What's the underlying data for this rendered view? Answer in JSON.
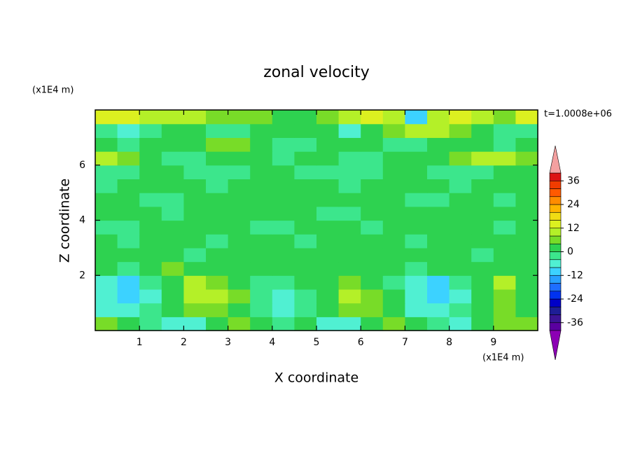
{
  "chart_data": {
    "type": "contour",
    "title": "zonal velocity",
    "x_label": "X coordinate",
    "y_label": "Z coordinate",
    "x_unit": "(x1E4 m)",
    "y_unit": "(x1E4 m)",
    "annotation": "t=1.0008e+06",
    "xlim": [
      0,
      10
    ],
    "ylim": [
      0,
      8
    ],
    "xticks": [
      1,
      2,
      3,
      4,
      5,
      6,
      7,
      8,
      9
    ],
    "yticks": [
      2,
      4,
      6
    ],
    "z": [
      [
        6,
        2,
        -2,
        -6,
        -6,
        2,
        6,
        2,
        -2,
        2,
        -6,
        -6,
        2,
        6,
        2,
        -2,
        -6,
        2,
        6,
        6
      ],
      [
        -6,
        -6,
        -2,
        2,
        6,
        6,
        2,
        -2,
        -6,
        -2,
        2,
        6,
        6,
        2,
        -6,
        -6,
        -2,
        2,
        6,
        2
      ],
      [
        -6,
        -10,
        -6,
        2,
        10,
        10,
        6,
        -2,
        -6,
        -2,
        2,
        10,
        6,
        2,
        -6,
        -10,
        -6,
        2,
        6,
        2
      ],
      [
        -6,
        -10,
        -2,
        2,
        10,
        6,
        2,
        -2,
        -2,
        2,
        2,
        6,
        2,
        -2,
        -6,
        -10,
        -2,
        2,
        10,
        2
      ],
      [
        2,
        -2,
        2,
        6,
        2,
        2,
        2,
        2,
        2,
        2,
        2,
        2,
        2,
        2,
        -2,
        2,
        2,
        2,
        2,
        2
      ],
      [
        2,
        2,
        2,
        2,
        -2,
        2,
        2,
        2,
        2,
        2,
        2,
        2,
        2,
        2,
        2,
        2,
        2,
        -2,
        2,
        2
      ],
      [
        2,
        -2,
        2,
        2,
        2,
        -2,
        2,
        2,
        2,
        -2,
        2,
        2,
        2,
        2,
        -2,
        2,
        2,
        2,
        2,
        2
      ],
      [
        -2,
        -2,
        2,
        2,
        2,
        2,
        2,
        -2,
        -2,
        2,
        2,
        2,
        -2,
        2,
        2,
        2,
        2,
        2,
        -2,
        2
      ],
      [
        2,
        2,
        2,
        -2,
        2,
        2,
        2,
        2,
        2,
        2,
        -2,
        -2,
        2,
        2,
        2,
        2,
        2,
        2,
        2,
        2
      ],
      [
        2,
        2,
        -2,
        -2,
        2,
        2,
        2,
        2,
        2,
        2,
        2,
        2,
        2,
        2,
        -2,
        -2,
        2,
        2,
        -2,
        2
      ],
      [
        -2,
        2,
        2,
        2,
        2,
        -2,
        2,
        2,
        2,
        2,
        2,
        -2,
        2,
        2,
        2,
        2,
        -2,
        2,
        2,
        2
      ],
      [
        -2,
        -2,
        2,
        2,
        -2,
        -2,
        -2,
        2,
        2,
        -2,
        -2,
        -2,
        -2,
        2,
        2,
        -2,
        -2,
        -2,
        2,
        2
      ],
      [
        10,
        6,
        2,
        -2,
        -2,
        2,
        2,
        2,
        -2,
        2,
        2,
        -2,
        -2,
        2,
        2,
        2,
        6,
        10,
        10,
        6
      ],
      [
        2,
        -2,
        2,
        2,
        2,
        6,
        6,
        2,
        -2,
        -2,
        2,
        2,
        2,
        -2,
        -2,
        2,
        2,
        2,
        -2,
        2
      ],
      [
        -2,
        -6,
        -2,
        2,
        2,
        -2,
        -2,
        2,
        2,
        2,
        2,
        -6,
        2,
        6,
        10,
        10,
        6,
        2,
        -2,
        -2
      ],
      [
        14,
        14,
        10,
        10,
        10,
        6,
        6,
        6,
        2,
        2,
        6,
        10,
        14,
        10,
        -10,
        10,
        14,
        10,
        6,
        14
      ]
    ],
    "colorbar": {
      "levels": [
        -40,
        -36,
        -32,
        -28,
        -24,
        -20,
        -16,
        -12,
        -8,
        -4,
        0,
        4,
        8,
        12,
        16,
        20,
        24,
        28,
        32,
        36,
        40
      ],
      "colors": [
        "#8c00b4",
        "#5a00a0",
        "#3c1496",
        "#1e1e96",
        "#0000c8",
        "#0032f0",
        "#1e6eff",
        "#28a0ff",
        "#3cd2ff",
        "#50f0d2",
        "#3ce68c",
        "#2ed250",
        "#78dc28",
        "#b4f028",
        "#dcf020",
        "#f0dc14",
        "#ffb400",
        "#ff8c00",
        "#ff5a00",
        "#f03c00",
        "#dc1414",
        "#f4a0a0"
      ],
      "ticks": [
        -36,
        -24,
        -12,
        0,
        12,
        24,
        36
      ]
    }
  }
}
